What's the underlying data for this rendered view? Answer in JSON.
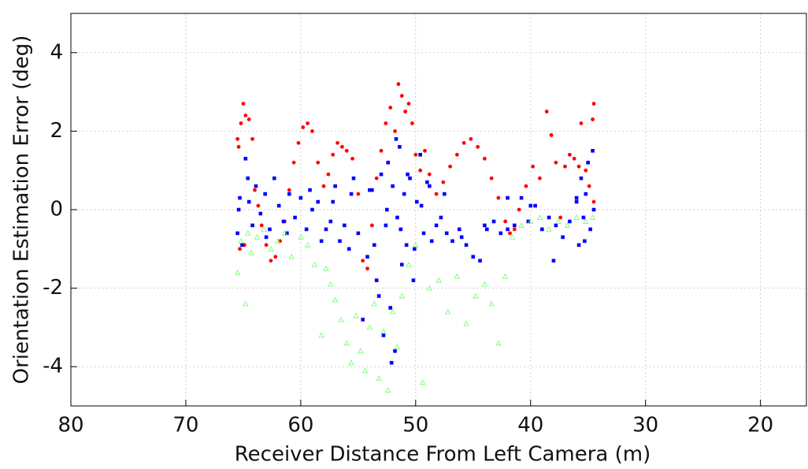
{
  "chart_data": {
    "type": "scatter",
    "x_label": "Receiver Distance From Left Camera (m)",
    "y_label": "Orientation Estimation Error  (deg)",
    "xlim": [
      80,
      16
    ],
    "ylim": [
      -5,
      5
    ],
    "xticks": [
      80,
      70,
      60,
      50,
      40,
      30,
      20
    ],
    "yticks": [
      -4,
      -2,
      0,
      2,
      4
    ],
    "grid": true,
    "series": [
      {
        "color": "#ff0000",
        "marker": "circle",
        "x": [
          65.5,
          65.4,
          65.2,
          65.0,
          64.8,
          64.5,
          64.2,
          64.0,
          63.7,
          63.4,
          63.0,
          62.6,
          62.2,
          61.8,
          61.4,
          61.0,
          60.6,
          60.2,
          59.8,
          59.4,
          59.0,
          58.5,
          58.0,
          57.6,
          57.2,
          56.8,
          56.4,
          56.0,
          55.5,
          55.0,
          54.6,
          54.2,
          53.8,
          53.4,
          53.0,
          52.6,
          52.2,
          51.8,
          51.5,
          51.2,
          50.9,
          50.6,
          50.3,
          50.0,
          49.6,
          49.2,
          48.8,
          48.2,
          47.6,
          47.0,
          46.4,
          45.8,
          45.2,
          44.6,
          44.0,
          43.4,
          42.8,
          42.2,
          41.8,
          41.4,
          41.0,
          40.4,
          39.8,
          39.2,
          38.6,
          38.2,
          37.8,
          37.4,
          37.0,
          36.6,
          36.2,
          35.8,
          35.6,
          35.2,
          34.9,
          34.6,
          34.5,
          34.5,
          65.3,
          64.9
        ],
        "values": [
          1.8,
          1.6,
          2.2,
          2.7,
          2.4,
          2.3,
          1.8,
          0.5,
          0.1,
          -0.4,
          -0.9,
          -1.3,
          -1.2,
          -0.8,
          -0.3,
          0.5,
          1.2,
          1.7,
          2.1,
          2.2,
          2.0,
          1.2,
          0.6,
          0.9,
          1.4,
          1.7,
          1.6,
          1.5,
          1.3,
          0.4,
          -1.3,
          -1.5,
          -0.4,
          0.8,
          1.5,
          2.2,
          2.6,
          2.0,
          3.2,
          2.9,
          2.5,
          2.7,
          2.2,
          1.4,
          1.0,
          1.5,
          0.9,
          0.4,
          0.7,
          1.1,
          1.4,
          1.7,
          1.8,
          1.6,
          1.3,
          0.8,
          0.3,
          -0.3,
          -0.6,
          -0.5,
          0.0,
          0.6,
          1.1,
          0.8,
          2.5,
          1.9,
          1.2,
          -0.2,
          1.1,
          1.4,
          1.3,
          1.1,
          2.2,
          1.0,
          0.6,
          2.3,
          2.7,
          0.2,
          -1.0,
          -0.9
        ]
      },
      {
        "color": "#0000ff",
        "marker": "square",
        "x": [
          65.5,
          65.3,
          65.1,
          64.8,
          64.5,
          64.2,
          63.9,
          63.5,
          63.1,
          62.7,
          62.3,
          61.9,
          61.5,
          61.0,
          60.5,
          60.0,
          59.5,
          59.0,
          58.5,
          58.2,
          57.8,
          57.4,
          57.0,
          56.6,
          56.2,
          55.8,
          55.4,
          55.0,
          54.6,
          54.2,
          53.8,
          53.4,
          53.0,
          52.8,
          52.6,
          52.4,
          52.2,
          52.0,
          51.8,
          51.6,
          51.4,
          51.2,
          51.0,
          50.8,
          50.5,
          50.2,
          49.9,
          49.6,
          49.3,
          49.0,
          48.6,
          48.2,
          47.8,
          47.3,
          46.8,
          46.2,
          45.6,
          45.0,
          44.4,
          43.8,
          43.2,
          42.6,
          42.0,
          41.4,
          40.8,
          40.2,
          39.6,
          39.0,
          38.4,
          37.8,
          37.2,
          36.6,
          36.0,
          35.8,
          35.6,
          35.4,
          35.2,
          35.0,
          34.8,
          34.6,
          34.5,
          65.4,
          64.6,
          63.0,
          61.2,
          59.2,
          57.2,
          55.6,
          54.0,
          53.6,
          53.2,
          52.5,
          52.1,
          51.7,
          51.3,
          50.7,
          50.1,
          49.5,
          48.8,
          47.5,
          46.0,
          44.0,
          42.0,
          40.0,
          38.0,
          36.0,
          35.3
        ],
        "values": [
          -0.6,
          0.3,
          -0.9,
          1.3,
          0.2,
          -0.4,
          0.6,
          -0.1,
          0.4,
          -0.5,
          0.8,
          0.1,
          -0.3,
          0.4,
          -0.2,
          0.3,
          -0.5,
          0.0,
          0.2,
          -0.8,
          -0.5,
          -0.3,
          0.6,
          -0.8,
          -0.4,
          -1.0,
          0.8,
          -0.6,
          -2.8,
          -1.2,
          0.5,
          -1.8,
          0.9,
          -3.2,
          -0.4,
          1.2,
          -2.5,
          0.6,
          -3.6,
          -0.2,
          1.6,
          -1.4,
          0.4,
          -0.9,
          0.8,
          -1.8,
          0.2,
          1.4,
          -0.6,
          0.7,
          -0.8,
          -0.4,
          -0.2,
          -0.6,
          -0.8,
          -0.5,
          -0.9,
          -1.2,
          -1.3,
          -0.5,
          -0.3,
          -0.6,
          0.3,
          -0.4,
          0.3,
          -0.3,
          0.1,
          -0.5,
          -0.2,
          -0.4,
          -0.7,
          -0.3,
          0.2,
          -0.9,
          0.8,
          -0.2,
          0.4,
          1.2,
          -0.5,
          1.5,
          0.0,
          0.0,
          0.8,
          -0.7,
          -0.6,
          0.5,
          0.2,
          0.4,
          0.5,
          -0.9,
          -2.2,
          0.0,
          -3.9,
          1.8,
          -0.5,
          0.9,
          -1.0,
          0.1,
          0.6,
          0.4,
          -0.7,
          -0.4,
          -0.5,
          0.1,
          -1.3,
          0.3,
          -0.8
        ]
      },
      {
        "color": "#66ff66",
        "marker": "triangle",
        "x": [
          65.5,
          65.2,
          64.8,
          64.6,
          64.3,
          63.8,
          63.2,
          62.6,
          62.0,
          61.4,
          60.8,
          60.0,
          59.4,
          58.8,
          58.2,
          57.8,
          57.4,
          57.0,
          56.5,
          56.0,
          55.6,
          55.2,
          54.8,
          54.4,
          54.0,
          53.6,
          53.2,
          52.8,
          52.4,
          52.0,
          51.6,
          51.2,
          50.6,
          50.0,
          49.4,
          48.8,
          48.0,
          47.2,
          46.4,
          45.6,
          44.8,
          44.0,
          43.4,
          42.8,
          42.2,
          41.6,
          40.8,
          40.0,
          39.2,
          38.4,
          37.6,
          36.8,
          36.0,
          35.2,
          34.6
        ],
        "values": [
          -1.6,
          -0.8,
          -2.4,
          -0.6,
          -1.1,
          -0.7,
          -0.5,
          -1.0,
          -0.8,
          -0.6,
          -1.2,
          -0.7,
          -0.9,
          -1.4,
          -3.2,
          -1.5,
          -1.9,
          -2.3,
          -2.8,
          -3.4,
          -3.9,
          -2.7,
          -3.6,
          -4.1,
          -3.0,
          -2.4,
          -4.3,
          -3.1,
          -4.6,
          -2.6,
          -3.5,
          -2.2,
          -1.4,
          -0.9,
          -4.4,
          -2.0,
          -1.8,
          -2.6,
          -1.7,
          -2.9,
          -2.2,
          -1.9,
          -2.4,
          -3.4,
          -1.7,
          -0.7,
          -0.4,
          -0.3,
          -0.2,
          -0.5,
          -0.3,
          -0.4,
          -0.2,
          -0.3,
          -0.2
        ]
      }
    ]
  }
}
